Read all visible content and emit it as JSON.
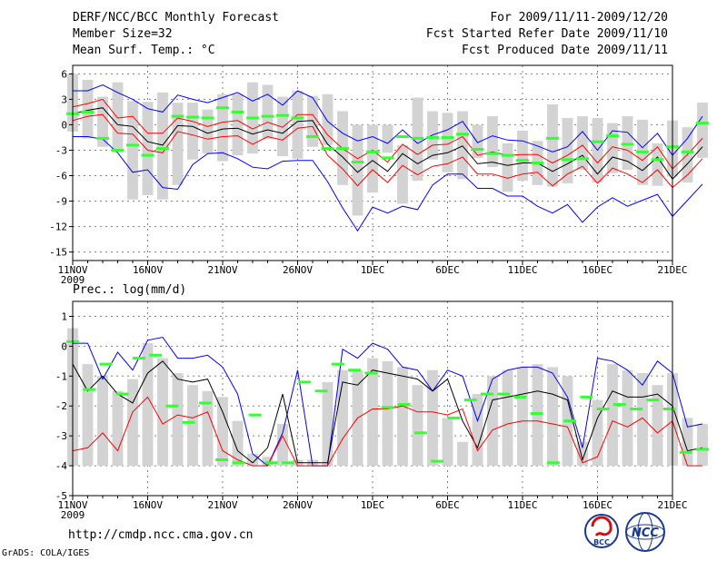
{
  "header": {
    "title": "DERF/NCC/BCC Monthly Forecast",
    "member_size": "Member Size=32",
    "variable": "Mean Surf. Temp.: °C",
    "period": "For 2009/11/11-2009/12/20",
    "started": "Fcst Started Refer Date 2009/11/10",
    "produced": "Fcst Produced Date 2009/11/11"
  },
  "footer": {
    "url": "http://cmdp.ncc.cma.gov.cn",
    "grads": "GrADS: COLA/IGES"
  },
  "logos": {
    "bcc": "BCC",
    "ncc": "NCC"
  },
  "colors": {
    "max": "#0000ff",
    "spread": "#ff0000",
    "mean": "#000000",
    "bar": "#d3d3d3",
    "obs": "#33ff33",
    "grid": "#808080"
  },
  "chart_data": [
    {
      "name": "temperature",
      "type": "line",
      "title": "",
      "ylabel": "Mean Surf. Temp.: °C",
      "ylim": [
        -16,
        7
      ],
      "yticks": [
        6,
        3,
        0,
        -3,
        -6,
        -9,
        -12,
        -15
      ],
      "ytick_labels": [
        "6",
        "3",
        "0",
        "-3",
        "-6",
        "-9",
        "-12",
        "-15"
      ],
      "x_start": 11,
      "x_end": 51,
      "xtick_days": [
        11,
        16,
        21,
        26,
        31,
        36,
        41,
        46,
        51
      ],
      "xtick_labels": [
        "11NOV",
        "16NOV",
        "21NOV",
        "26NOV",
        "1DEC",
        "6DEC",
        "11DEC",
        "16DEC",
        "21DEC"
      ],
      "xtick_sub": "2009",
      "series": [
        {
          "name": "max",
          "color": "#0000ff",
          "values": [
            4,
            4,
            4.7,
            3.8,
            3,
            1.9,
            1.5,
            3.5,
            3,
            2.6,
            3.2,
            3.8,
            2.8,
            3.6,
            2.3,
            4,
            3.2,
            0.4,
            -1,
            -1.9,
            -1.4,
            -2.2,
            -0.6,
            -2.2,
            -1.2,
            -0.6,
            0.4,
            -2.1,
            -1.3,
            -1.8,
            -1.9,
            -2.5,
            -3.2,
            -2.6,
            -0.8,
            -3,
            -0.7,
            -0.9,
            -2.7,
            -1,
            -3.6,
            -1.6,
            1
          ]
        },
        {
          "name": "upper",
          "color": "#ff0000",
          "values": [
            2.1,
            2.5,
            3,
            0.8,
            1,
            -1,
            -1,
            0.8,
            0.4,
            -0.2,
            0.3,
            0.5,
            -0.5,
            0.3,
            -0.3,
            1.2,
            1.2,
            -1.2,
            -2.8,
            -4,
            -3,
            -4.4,
            -2.3,
            -3.5,
            -2.4,
            -2.3,
            -1.4,
            -3.6,
            -3.2,
            -3.6,
            -3.5,
            -3.5,
            -4.5,
            -3.6,
            -2.4,
            -4.5,
            -2.6,
            -3,
            -4.2,
            -2.6,
            -5.2,
            -3.5,
            -1.6
          ]
        },
        {
          "name": "mean",
          "color": "#000000",
          "values": [
            1.3,
            1.7,
            2,
            0,
            -0.2,
            -2,
            -2.4,
            -0.1,
            -0.2,
            -1,
            -0.5,
            -0.4,
            -1.1,
            -0.6,
            -1,
            0.4,
            0.5,
            -2.3,
            -3.8,
            -5.6,
            -4.2,
            -5.5,
            -3.4,
            -4.6,
            -3.6,
            -3.3,
            -2.5,
            -4.6,
            -4.4,
            -4.8,
            -4.5,
            -4.5,
            -5.5,
            -4.6,
            -3.6,
            -5.8,
            -3.8,
            -4.3,
            -5.4,
            -3.8,
            -6.4,
            -4.6,
            -2.6
          ]
        },
        {
          "name": "lower",
          "color": "#ff0000",
          "values": [
            0.5,
            1,
            1.2,
            -1,
            -1.1,
            -3,
            -3.3,
            -0.8,
            -1.2,
            -1.7,
            -1.4,
            -1.3,
            -2.3,
            -1.4,
            -1.8,
            -0.4,
            -0.2,
            -3.6,
            -5.2,
            -7.2,
            -5.3,
            -6.8,
            -4.8,
            -5.9,
            -4.9,
            -4.6,
            -3.8,
            -5.8,
            -5.8,
            -6.3,
            -5.8,
            -5.6,
            -7.2,
            -5.8,
            -4.9,
            -6.9,
            -5.1,
            -5.8,
            -6.8,
            -5.3,
            -7.4,
            -5.9,
            -4
          ]
        },
        {
          "name": "min",
          "color": "#0000ff",
          "values": [
            -1.4,
            -1.4,
            -1.7,
            -3.3,
            -5.6,
            -5.3,
            -7.4,
            -7.6,
            -4.7,
            -3.4,
            -3.3,
            -4,
            -5,
            -5.2,
            -4.3,
            -4.2,
            -4.2,
            -6.7,
            -9.8,
            -12.5,
            -9.7,
            -10.4,
            -9.6,
            -10,
            -7.1,
            -5.8,
            -5.8,
            -7.5,
            -7.5,
            -8.4,
            -8.4,
            -9.6,
            -10.4,
            -9.4,
            -11.5,
            -9.7,
            -8.6,
            -9.6,
            -8.9,
            -8.2,
            -10.8,
            -8.9,
            -7
          ]
        }
      ],
      "bars": [
        [
          -0.8,
          6
        ],
        [
          -1.6,
          5.3
        ],
        [
          -2.6,
          3.3
        ],
        [
          -3,
          5
        ],
        [
          -8.8,
          2.8
        ],
        [
          -8.3,
          2.7
        ],
        [
          -8.8,
          3.8
        ],
        [
          -7.1,
          2.6
        ],
        [
          -4.1,
          2.6
        ],
        [
          -3.4,
          1.8
        ],
        [
          -4.3,
          3.6
        ],
        [
          -3.6,
          3.6
        ],
        [
          -3.4,
          5
        ],
        [
          -1.7,
          4.7
        ],
        [
          -3.7,
          3.3
        ],
        [
          -4,
          4
        ],
        [
          -2.6,
          3.4
        ],
        [
          -2.4,
          3.6
        ],
        [
          -7.1,
          1.6
        ],
        [
          -10.7,
          0
        ],
        [
          -8,
          0
        ],
        [
          -3.3,
          0
        ],
        [
          -9.3,
          -2.4
        ],
        [
          -6.6,
          3.2
        ],
        [
          -4.1,
          1.6
        ],
        [
          -5.6,
          1.4
        ],
        [
          -6.4,
          1.6
        ],
        [
          -3.9,
          0
        ],
        [
          -5,
          1
        ],
        [
          -7.9,
          -2.2
        ],
        [
          -6.6,
          -0.7
        ],
        [
          -7.1,
          -1.9
        ],
        [
          -7.3,
          2.4
        ],
        [
          -6.9,
          0.8
        ],
        [
          -5.3,
          1
        ],
        [
          -6.8,
          0.8
        ],
        [
          -5.7,
          0.2
        ],
        [
          -5.3,
          1
        ],
        [
          -7.1,
          0.6
        ],
        [
          -7.2,
          -2.2
        ],
        [
          -6.1,
          0.5
        ],
        [
          -6.8,
          -0.3
        ],
        [
          -3.9,
          2.6
        ]
      ],
      "obs": [
        1.3,
        1.5,
        -1.6,
        -3,
        -2.4,
        -3.6,
        -2.8,
        1,
        0.9,
        0.8,
        2,
        1.5,
        0.8,
        1,
        1.1,
        0.8,
        -1.4,
        -2.8,
        -2.8,
        -4.4,
        -3.2,
        -3.9,
        -1.4,
        -1.6,
        -1.5,
        -1.5,
        -1.1,
        -2.9,
        -3.4,
        -3.6,
        -4.2,
        -4.5,
        -1.6,
        -4.1,
        -4,
        -2,
        -1.3,
        -2.3,
        -3.2,
        -4.1,
        -2.6,
        -3.2,
        0.2
      ]
    },
    {
      "name": "precipitation",
      "type": "line",
      "title": "",
      "ylabel": "Prec.: log(mm/d)",
      "ylim": [
        -5,
        1.5
      ],
      "yticks": [
        1,
        0,
        -1,
        -2,
        -3,
        -4,
        -5
      ],
      "ytick_labels": [
        "1",
        "0",
        "-1",
        "-2",
        "-3",
        "-4",
        "-5"
      ],
      "x_start": 11,
      "x_end": 51,
      "xtick_days": [
        11,
        16,
        21,
        26,
        31,
        36,
        41,
        46,
        51
      ],
      "xtick_labels": [
        "11NOV",
        "16NOV",
        "21NOV",
        "26NOV",
        "1DEC",
        "6DEC",
        "11DEC",
        "16DEC",
        "21DEC"
      ],
      "xtick_sub": "2009",
      "series": [
        {
          "name": "max",
          "color": "#0000ff",
          "values": [
            0.1,
            0.1,
            -1.1,
            -0.2,
            -0.8,
            0.2,
            0.3,
            -0.4,
            -0.4,
            -0.3,
            -0.7,
            -1.6,
            -3.6,
            -4,
            -2.9,
            -0.8,
            -4,
            -4,
            -0.1,
            -0.4,
            0.1,
            -0.1,
            -0.7,
            -0.8,
            -1.5,
            -0.8,
            -1,
            -2.5,
            -1.1,
            -0.8,
            -0.7,
            -0.7,
            -0.9,
            -1.7,
            -3.4,
            -0.4,
            -0.5,
            -0.8,
            -1.3,
            -0.5,
            -0.9,
            -2.7,
            -2.6
          ]
        },
        {
          "name": "mean",
          "color": "#000000",
          "values": [
            -0.6,
            -1.5,
            -1,
            -1.6,
            -1.9,
            -0.9,
            -0.5,
            -1.1,
            -1.2,
            -1.1,
            -2.2,
            -3.5,
            -3.9,
            -3.4,
            -1.6,
            -3.9,
            -3.9,
            -3.9,
            -1.2,
            -1.3,
            -0.8,
            -0.9,
            -1,
            -1.1,
            -1.5,
            -1.1,
            -2.5,
            -3.4,
            -1.8,
            -1.7,
            -1.6,
            -1.5,
            -1.6,
            -1.8,
            -3.8,
            -2.4,
            -1.5,
            -1.7,
            -1.7,
            -1.6,
            -2,
            -3.5,
            -3.4
          ]
        },
        {
          "name": "min",
          "color": "#ff0000",
          "values": [
            -3.5,
            -3.4,
            -2.9,
            -3.5,
            -2.2,
            -1.7,
            -2.6,
            -2.3,
            -2.4,
            -2.2,
            -3.5,
            -3.8,
            -4,
            -4,
            -3,
            -4,
            -4,
            -4,
            -3.1,
            -2.4,
            -2.1,
            -2.1,
            -2,
            -2.2,
            -2.2,
            -2.3,
            -2.1,
            -3.5,
            -2.8,
            -2.6,
            -2.5,
            -2.5,
            -2.6,
            -2.7,
            -3.9,
            -3.7,
            -2.5,
            -2.7,
            -2.4,
            -2.9,
            -2.5,
            -4,
            -4
          ]
        }
      ],
      "bars": [
        [
          -4,
          0.6
        ],
        [
          -4,
          -0.6
        ],
        [
          -4,
          -1
        ],
        [
          -4,
          -1.5
        ],
        [
          -4,
          -1.1
        ],
        [
          -4,
          0.1
        ],
        [
          -4,
          -0.4
        ],
        [
          -4,
          -0.9
        ],
        [
          -4,
          -1.3
        ],
        [
          -4,
          -1.5
        ],
        [
          -4,
          -1.7
        ],
        [
          -4,
          -2.5
        ],
        [
          -4,
          -3.6
        ],
        [
          -4,
          -3.7
        ],
        [
          -4,
          -2.6
        ],
        [
          -4,
          -3.8
        ],
        [
          -4,
          -3.8
        ],
        [
          -4,
          -1.2
        ],
        [
          -4,
          -0.8
        ],
        [
          -4,
          -0.8
        ],
        [
          -4,
          -0.4
        ],
        [
          -4,
          -0.5
        ],
        [
          -4,
          -0.7
        ],
        [
          -4,
          -1.3
        ],
        [
          -4,
          -0.8
        ],
        [
          -4,
          -2.4
        ],
        [
          -4,
          -3.2
        ],
        [
          -4,
          -1.6
        ],
        [
          -4,
          -1
        ],
        [
          -4,
          -0.8
        ],
        [
          -4,
          -0.7
        ],
        [
          -4,
          -0.6
        ],
        [
          -4,
          -0.7
        ],
        [
          -4,
          -1
        ],
        [
          -4,
          -3.2
        ],
        [
          -4,
          -1.8
        ],
        [
          -4,
          -0.6
        ],
        [
          -4,
          -0.8
        ],
        [
          -4,
          -0.9
        ],
        [
          -4,
          -1.3
        ],
        [
          -4,
          -0.9
        ],
        [
          -4,
          -2.4
        ],
        [
          -4,
          -2.6
        ]
      ],
      "obs": [
        0.15,
        -1.45,
        -0.6,
        -1.6,
        -0.4,
        -0.3,
        -2,
        -2.55,
        -1.9,
        -3.8,
        -3.9,
        -2.3,
        -3.9,
        -3.9,
        -1.2,
        -1.5,
        -0.6,
        -0.8,
        -0.9,
        -2.05,
        -1.95,
        -2.9,
        -3.85,
        -2.4,
        -1.8,
        -1.6,
        -1.6,
        -1.7,
        -2.25,
        -3.9,
        -2.5,
        -1.7,
        -2.1,
        -1.95,
        -2.1,
        -1.8,
        -2.1,
        -3.55,
        -3.45
      ]
    }
  ]
}
